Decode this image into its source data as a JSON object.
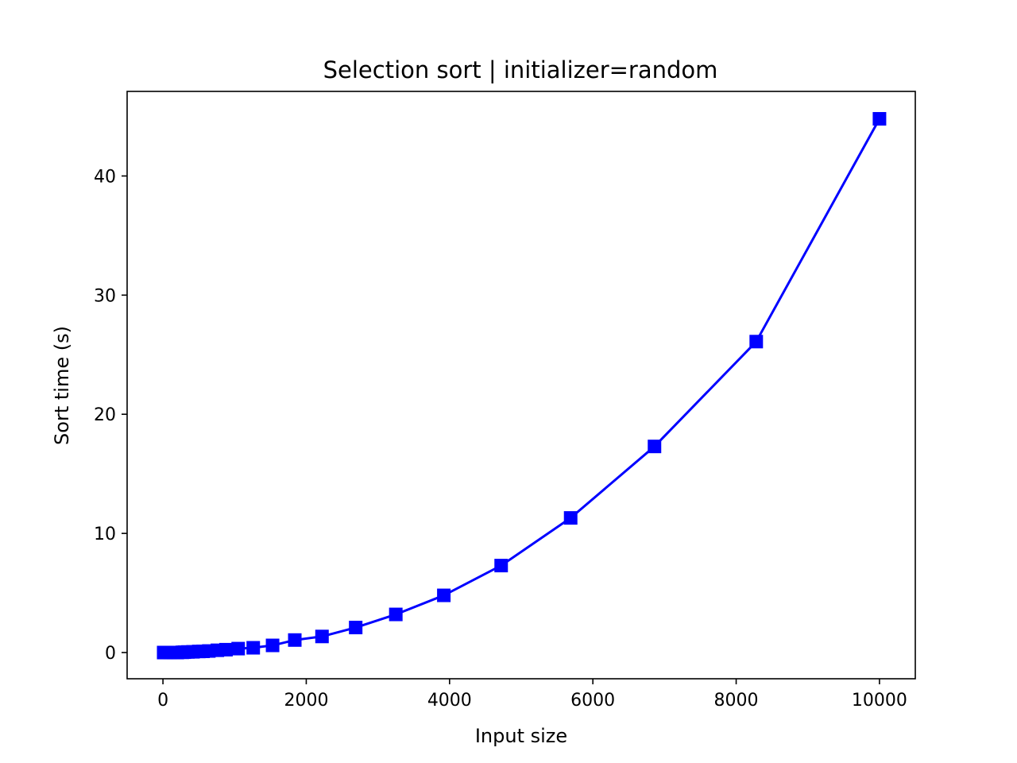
{
  "chart_data": {
    "type": "line",
    "title": "Selection sort | initializer=random",
    "xlabel": "Input size",
    "ylabel": "Sort time (s)",
    "xlim": [
      -500,
      10500
    ],
    "ylim": [
      -2.2,
      47.1
    ],
    "xticks": [
      0,
      2000,
      4000,
      6000,
      8000,
      10000
    ],
    "yticks": [
      0,
      10,
      20,
      30,
      40
    ],
    "grid": false,
    "legend": "none",
    "series": [
      {
        "color": "#0000ff",
        "marker": "square",
        "x": [
          10,
          50,
          100,
          150,
          200,
          270,
          300,
          350,
          420,
          500,
          560,
          640,
          760,
          880,
          1050,
          1260,
          1530,
          1840,
          2220,
          2690,
          3250,
          3920,
          4720,
          5690,
          6860,
          8280,
          10000
        ],
        "y": [
          0.0,
          0.0,
          0.0,
          0.0,
          0.0,
          0.02,
          0.03,
          0.05,
          0.06,
          0.09,
          0.1,
          0.13,
          0.19,
          0.24,
          0.33,
          0.4,
          0.6,
          1.05,
          1.35,
          2.1,
          3.2,
          4.8,
          7.3,
          11.3,
          17.3,
          26.1,
          44.8
        ]
      }
    ]
  }
}
